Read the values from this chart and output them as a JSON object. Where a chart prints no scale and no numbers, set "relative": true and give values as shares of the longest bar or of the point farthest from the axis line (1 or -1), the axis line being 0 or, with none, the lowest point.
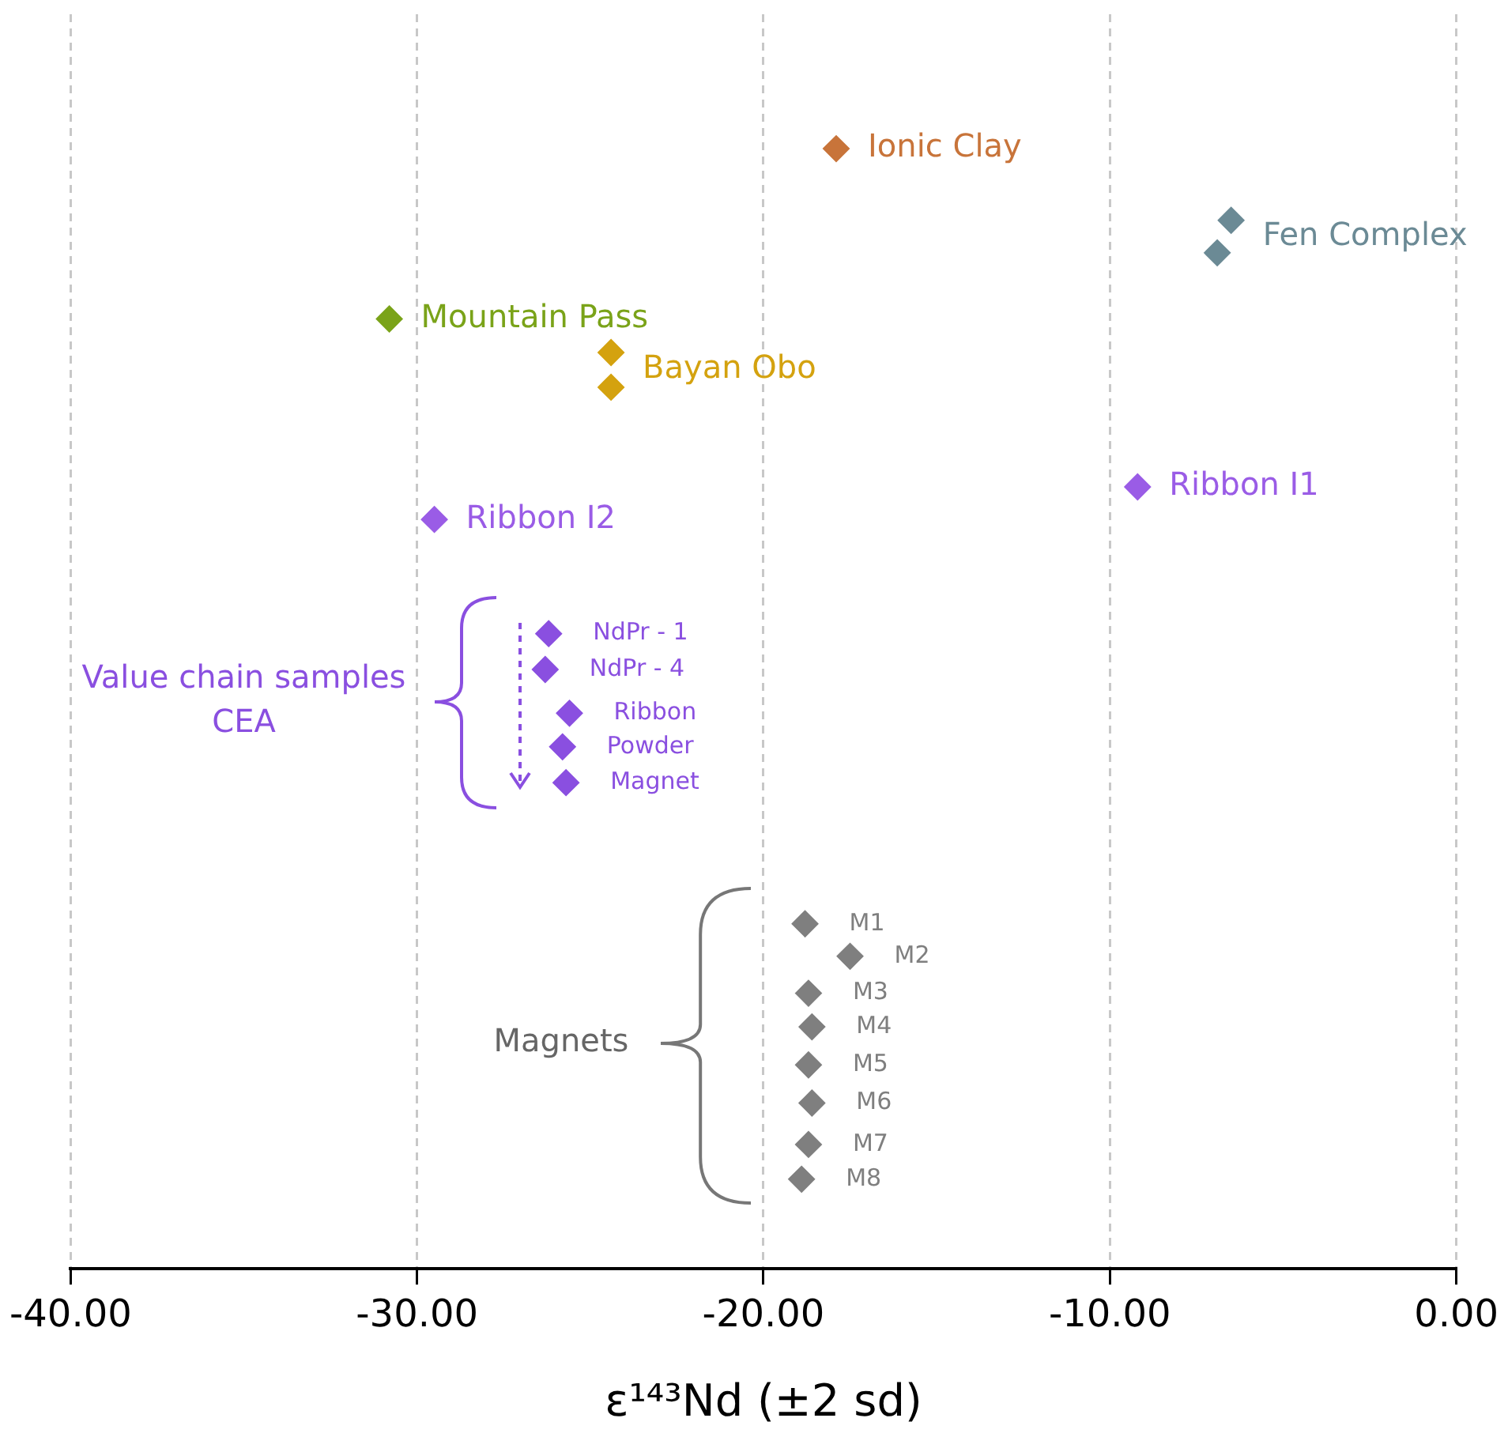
{
  "chart_data": {
    "type": "scatter",
    "relative": true,
    "xlabel": "ε¹⁴³Nd (±2 sd)",
    "xlim": [
      -40,
      0
    ],
    "xticks": [
      {
        "value": -40,
        "label": "-40.00"
      },
      {
        "value": -30,
        "label": "-30.00"
      },
      {
        "value": -20,
        "label": "-20.00"
      },
      {
        "value": -10,
        "label": "-10.00"
      },
      {
        "value": 0,
        "label": "0.00"
      }
    ],
    "grid": "x",
    "legend": false,
    "marker": "diamond",
    "tick_labels": "x",
    "annotations": [
      "Value chain samples CEA",
      "Magnets"
    ],
    "series": [
      {
        "name": "Ionic Clay",
        "color": "#c8743a",
        "x": [
          -17.9
        ],
        "values": [
          1
        ]
      },
      {
        "name": "Fen Complex",
        "color": "#6b8a95",
        "x": [
          -6.5,
          -6.9
        ],
        "values": [
          0.936,
          0.907
        ]
      },
      {
        "name": "Mountain Pass",
        "color": "#7aa319",
        "x": [
          -30.8
        ],
        "values": [
          0.848
        ]
      },
      {
        "name": "Bayan Obo",
        "color": "#d4a20f",
        "x": [
          -24.4,
          -24.4
        ],
        "values": [
          0.818,
          0.787
        ]
      },
      {
        "name": "Ribbon I1",
        "color": "#9a5ce6",
        "x": [
          -9.2
        ],
        "values": [
          0.698
        ]
      },
      {
        "name": "Ribbon I2",
        "color": "#9a5ce6",
        "x": [
          -29.5
        ],
        "values": [
          0.669
        ]
      },
      {
        "name": "NdPr - 1",
        "color": "#8a4fe0",
        "x": [
          -26.2
        ],
        "values": [
          0.567
        ]
      },
      {
        "name": "NdPr - 4",
        "color": "#8a4fe0",
        "x": [
          -26.3
        ],
        "values": [
          0.535
        ]
      },
      {
        "name": "Ribbon",
        "color": "#8a4fe0",
        "x": [
          -25.6
        ],
        "values": [
          0.496
        ]
      },
      {
        "name": "Powder",
        "color": "#8a4fe0",
        "x": [
          -25.8
        ],
        "values": [
          0.466
        ]
      },
      {
        "name": "Magnet",
        "color": "#8a4fe0",
        "x": [
          -25.7
        ],
        "values": [
          0.434
        ]
      },
      {
        "name": "M1",
        "color": "#7f7f7f",
        "x": [
          -18.8
        ],
        "values": [
          0.308
        ]
      },
      {
        "name": "M2",
        "color": "#7f7f7f",
        "x": [
          -17.5
        ],
        "values": [
          0.279
        ]
      },
      {
        "name": "M3",
        "color": "#7f7f7f",
        "x": [
          -18.7
        ],
        "values": [
          0.246
        ]
      },
      {
        "name": "M4",
        "color": "#7f7f7f",
        "x": [
          -18.6
        ],
        "values": [
          0.216
        ]
      },
      {
        "name": "M5",
        "color": "#7f7f7f",
        "x": [
          -18.7
        ],
        "values": [
          0.182
        ]
      },
      {
        "name": "M6",
        "color": "#7f7f7f",
        "x": [
          -18.6
        ],
        "values": [
          0.148
        ]
      },
      {
        "name": "M7",
        "color": "#7f7f7f",
        "x": [
          -18.7
        ],
        "values": [
          0.111
        ]
      },
      {
        "name": "M8",
        "color": "#7f7f7f",
        "x": [
          -18.9
        ],
        "values": [
          0.08
        ]
      }
    ]
  }
}
